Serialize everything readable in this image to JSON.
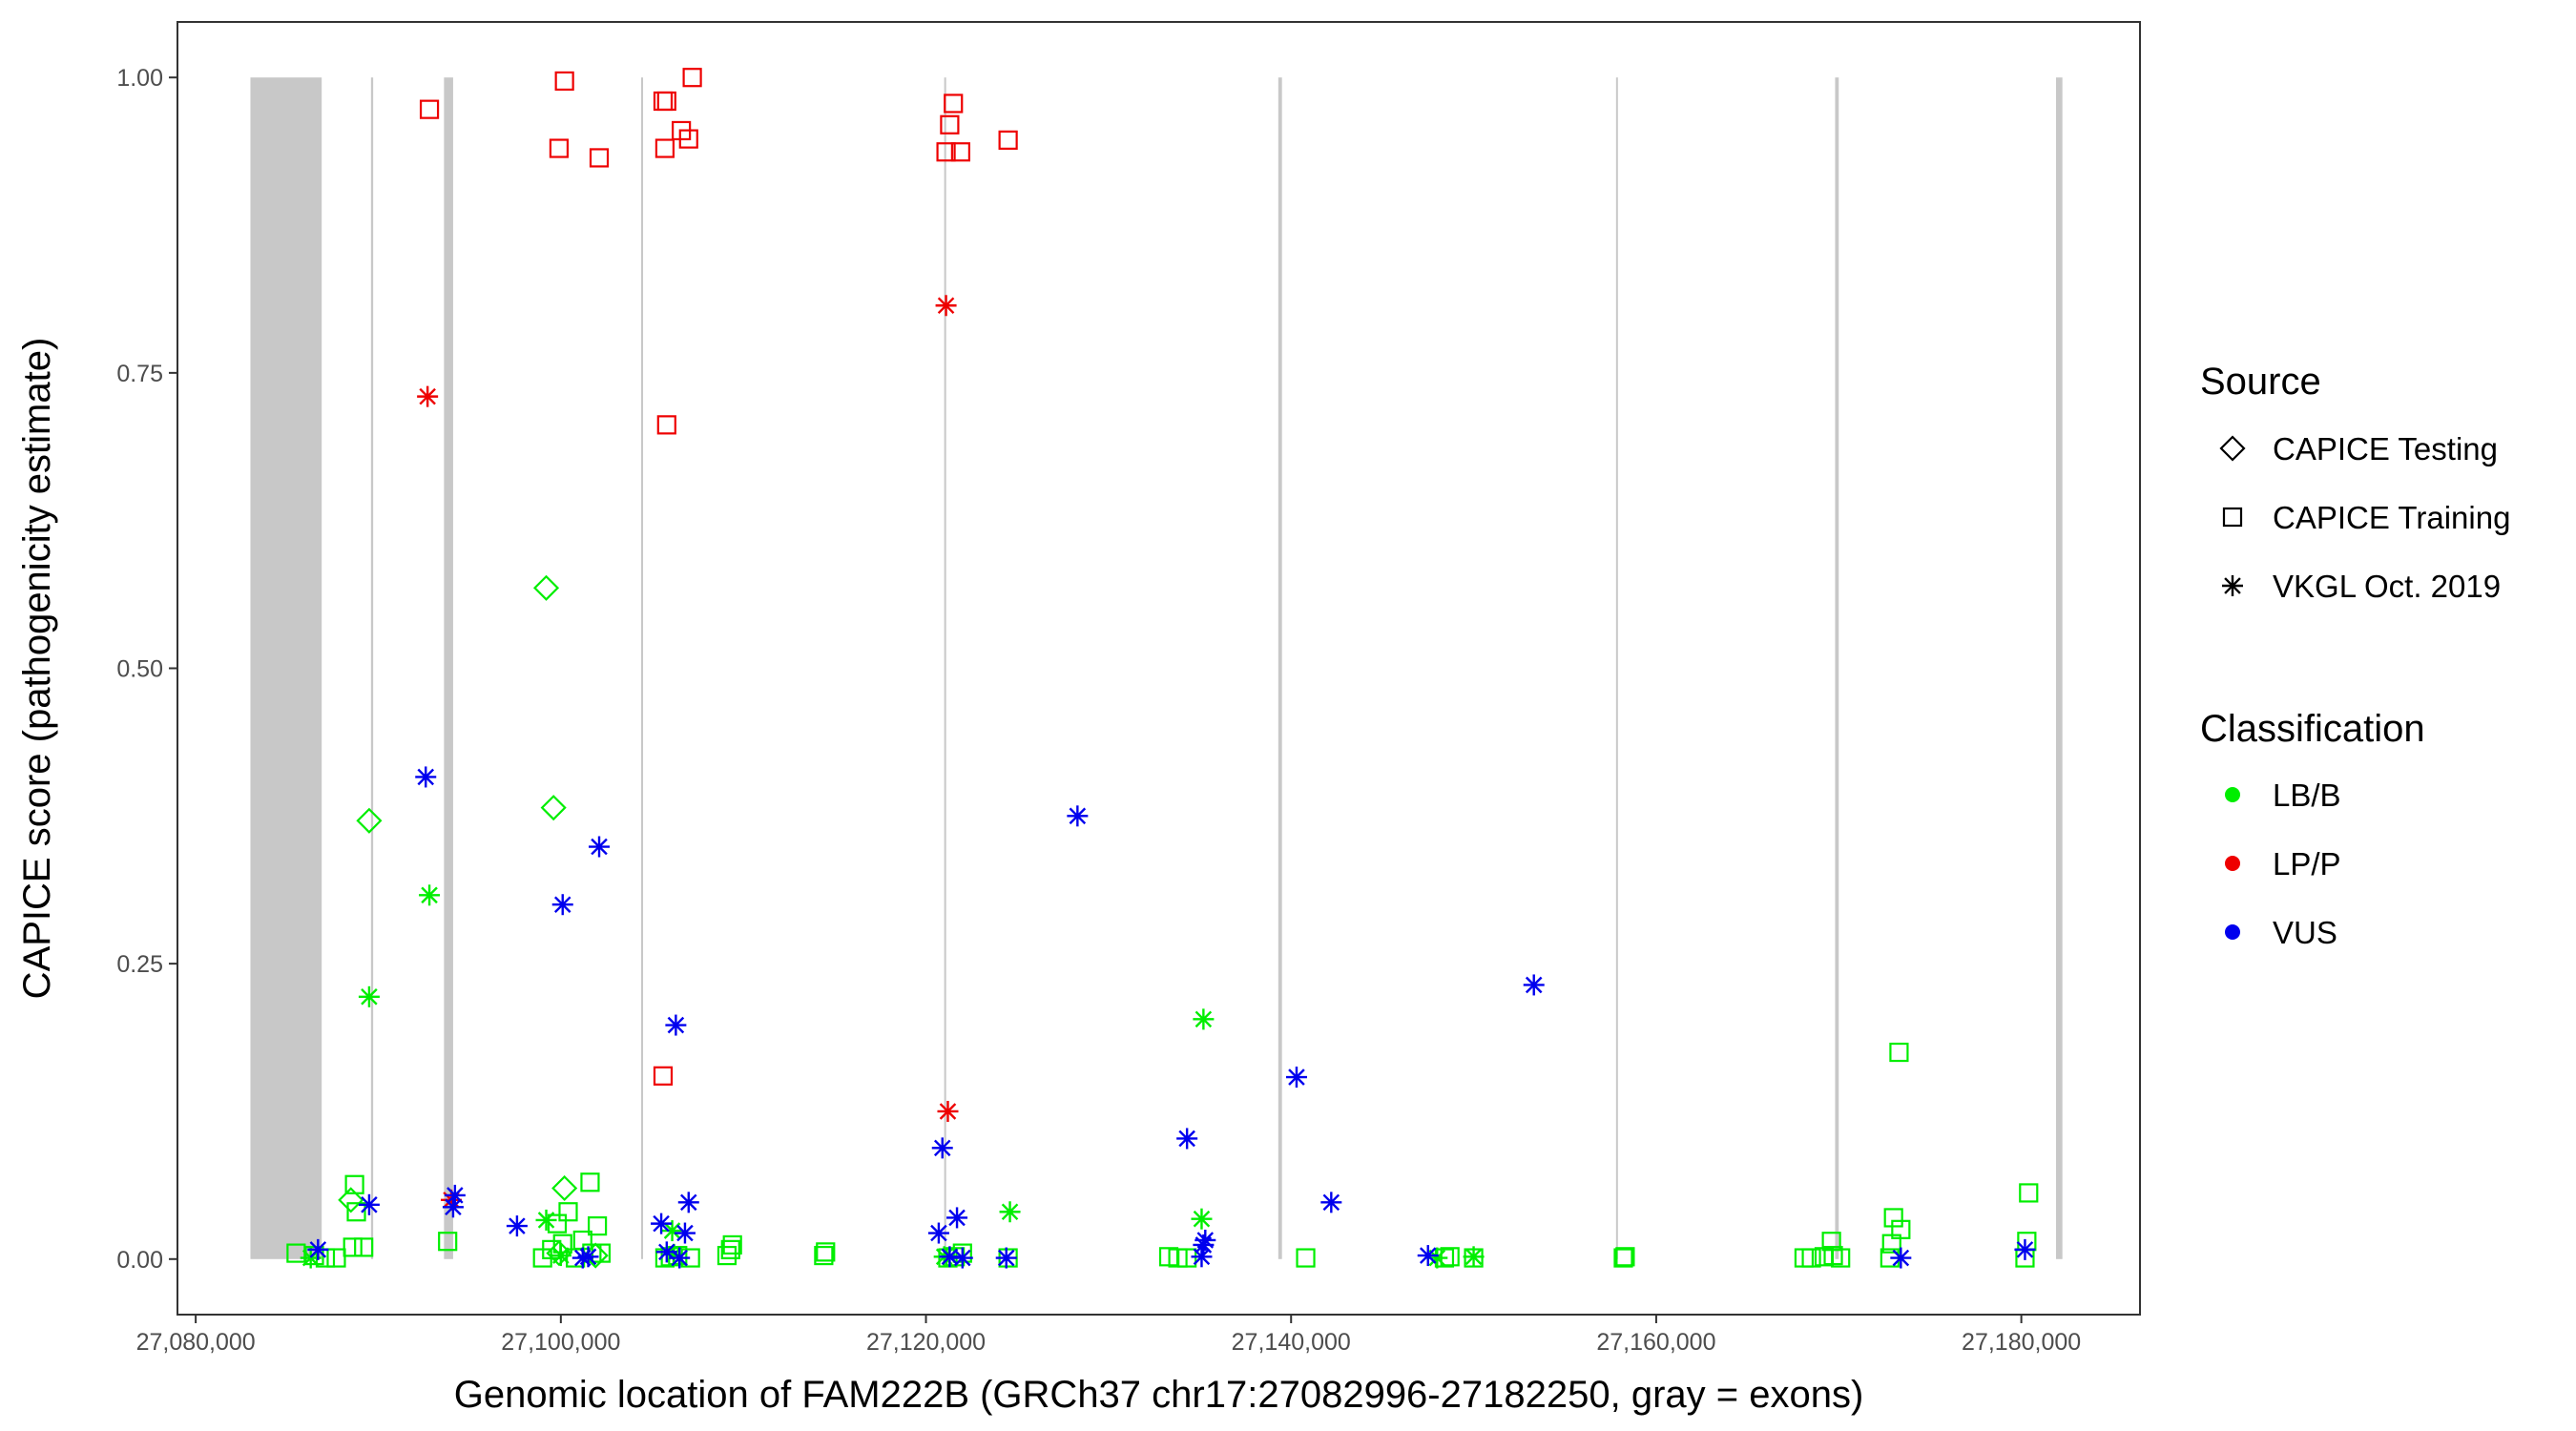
{
  "chart_data": {
    "type": "scatter",
    "title": "",
    "xlabel": "Genomic location of FAM222B (GRCh37 chr17:27082996-27182250, gray = exons)",
    "ylabel": "CAPICE score (pathogenicity estimate)",
    "xlim": [
      27079000,
      27186500
    ],
    "ylim": [
      -0.047,
      1.047
    ],
    "x_ticks": [
      27080000,
      27100000,
      27120000,
      27140000,
      27160000,
      27180000
    ],
    "x_tick_labels": [
      "27,080,000",
      "27,100,000",
      "27,120,000",
      "27,140,000",
      "27,160,000",
      "27,180,000"
    ],
    "y_ticks": [
      0,
      0.25,
      0.5,
      0.75,
      1.0
    ],
    "y_tick_labels": [
      "0.00",
      "0.25",
      "0.50",
      "0.75",
      "1.00"
    ],
    "grid": false,
    "exons": [
      [
        27082996,
        27086900
      ],
      [
        27089600,
        27089720
      ],
      [
        27093600,
        27094100
      ],
      [
        27104400,
        27104500
      ],
      [
        27121000,
        27121080
      ],
      [
        27139300,
        27139500
      ],
      [
        27157800,
        27157880
      ],
      [
        27169800,
        27170000
      ],
      [
        27181900,
        27182250
      ]
    ],
    "exon_color": "#c8c8c8",
    "legend": {
      "placement": "right",
      "source_title": "Source",
      "source_items": [
        {
          "label": "CAPICE Testing",
          "shape": "diamond"
        },
        {
          "label": "CAPICE Training",
          "shape": "square"
        },
        {
          "label": "VKGL Oct. 2019",
          "shape": "asterisk"
        }
      ],
      "class_title": "Classification",
      "class_items": [
        {
          "label": "LB/B",
          "color": "#00ee00"
        },
        {
          "label": "LP/P",
          "color": "#ee0000"
        },
        {
          "label": "VUS",
          "color": "#0000ee"
        }
      ]
    },
    "series": [
      {
        "name": "CAPICE Testing",
        "shape": "diamond",
        "color": "#00ee00",
        "classification": "LB/B",
        "x": [
          27099200,
          27099600,
          27089500,
          27100200,
          27099900,
          27101900,
          27088500
        ],
        "y": [
          0.568,
          0.382,
          0.371,
          0.06,
          0.005,
          0.003,
          0.05
        ]
      },
      {
        "name": "CAPICE Training",
        "shape": "square",
        "color": "#ee0000",
        "classification": "LP/P",
        "x": [
          27100200,
          27092800,
          27099900,
          27102100,
          27105600,
          27105800,
          27106600,
          27107000,
          27107200,
          27105700,
          27121500,
          27121300,
          27121900,
          27124500,
          27121100,
          27105800,
          27105600
        ],
        "y": [
          0.997,
          0.973,
          0.94,
          0.932,
          0.98,
          0.98,
          0.955,
          0.948,
          1.0,
          0.94,
          0.978,
          0.96,
          0.937,
          0.947,
          0.937,
          0.706,
          0.155
        ]
      },
      {
        "name": "CAPICE Training",
        "shape": "square",
        "color": "#00ee00",
        "classification": "LB/B",
        "x": [
          27085500,
          27086500,
          27087100,
          27087700,
          27088700,
          27088800,
          27088600,
          27089200,
          27093800,
          27099000,
          27099500,
          27099800,
          27100100,
          27100400,
          27100800,
          27101200,
          27101600,
          27102000,
          27102200,
          27101700,
          27105700,
          27106000,
          27106400,
          27107100,
          27109100,
          27109300,
          27109400,
          27114400,
          27114500,
          27121200,
          27121600,
          27122000,
          27124500,
          27133300,
          27133800,
          27134300,
          27140800,
          27148400,
          27148700,
          27150000,
          27158200,
          27158300,
          27168100,
          27168500,
          27169200,
          27169600,
          27169700,
          27170100,
          27172800,
          27172900,
          27173000,
          27173400,
          27173300,
          27180400,
          27180300,
          27180200
        ],
        "y": [
          0.005,
          0.003,
          0.001,
          0.001,
          0.063,
          0.04,
          0.01,
          0.01,
          0.015,
          0.001,
          0.008,
          0.03,
          0.013,
          0.04,
          0.001,
          0.016,
          0.065,
          0.028,
          0.005,
          0.005,
          0.001,
          0.002,
          0.003,
          0.001,
          0.003,
          0.008,
          0.012,
          0.003,
          0.006,
          0.001,
          0.002,
          0.005,
          0.001,
          0.002,
          0.001,
          0.001,
          0.001,
          0.001,
          0.002,
          0.001,
          0.001,
          0.002,
          0.001,
          0.001,
          0.002,
          0.015,
          0.003,
          0.001,
          0.001,
          0.013,
          0.035,
          0.025,
          0.175,
          0.056,
          0.015,
          0.001
        ]
      },
      {
        "name": "VKGL Oct. 2019",
        "shape": "asterisk",
        "color": "#ee0000",
        "classification": "LP/P",
        "x": [
          27092700,
          27121100,
          27121200,
          27094000
        ],
        "y": [
          0.73,
          0.807,
          0.125,
          0.05
        ]
      },
      {
        "name": "VKGL Oct. 2019",
        "shape": "asterisk",
        "color": "#00ee00",
        "classification": "LB/B",
        "x": [
          27092800,
          27089500,
          27099200,
          27106100,
          27124600,
          27135200,
          27135100,
          27148000,
          27150000,
          27086300,
          27100000,
          27106200,
          27121000
        ],
        "y": [
          0.308,
          0.222,
          0.033,
          0.024,
          0.04,
          0.203,
          0.034,
          0.001,
          0.002,
          0.001,
          0.003,
          0.004,
          0.002
        ]
      },
      {
        "name": "VKGL Oct. 2019",
        "shape": "asterisk",
        "color": "#0000ee",
        "classification": "VUS",
        "x": [
          27092600,
          27102100,
          27100100,
          27106300,
          27128300,
          27153300,
          27140300,
          27134300,
          27120900,
          27142200,
          27089500,
          27094200,
          27094100,
          27097600,
          27086700,
          27101500,
          27101200,
          27105500,
          27107000,
          27106800,
          27105800,
          27106500,
          27120700,
          27121700,
          27121300,
          27122000,
          27124400,
          27135300,
          27135200,
          27135100,
          27147500,
          27173400,
          27180200
        ],
        "y": [
          0.408,
          0.349,
          0.3,
          0.198,
          0.375,
          0.232,
          0.154,
          0.102,
          0.094,
          0.048,
          0.046,
          0.054,
          0.044,
          0.028,
          0.008,
          0.002,
          0.001,
          0.03,
          0.048,
          0.022,
          0.006,
          0.001,
          0.022,
          0.035,
          0.002,
          0.001,
          0.001,
          0.016,
          0.012,
          0.002,
          0.003,
          0.001,
          0.008
        ]
      }
    ]
  }
}
